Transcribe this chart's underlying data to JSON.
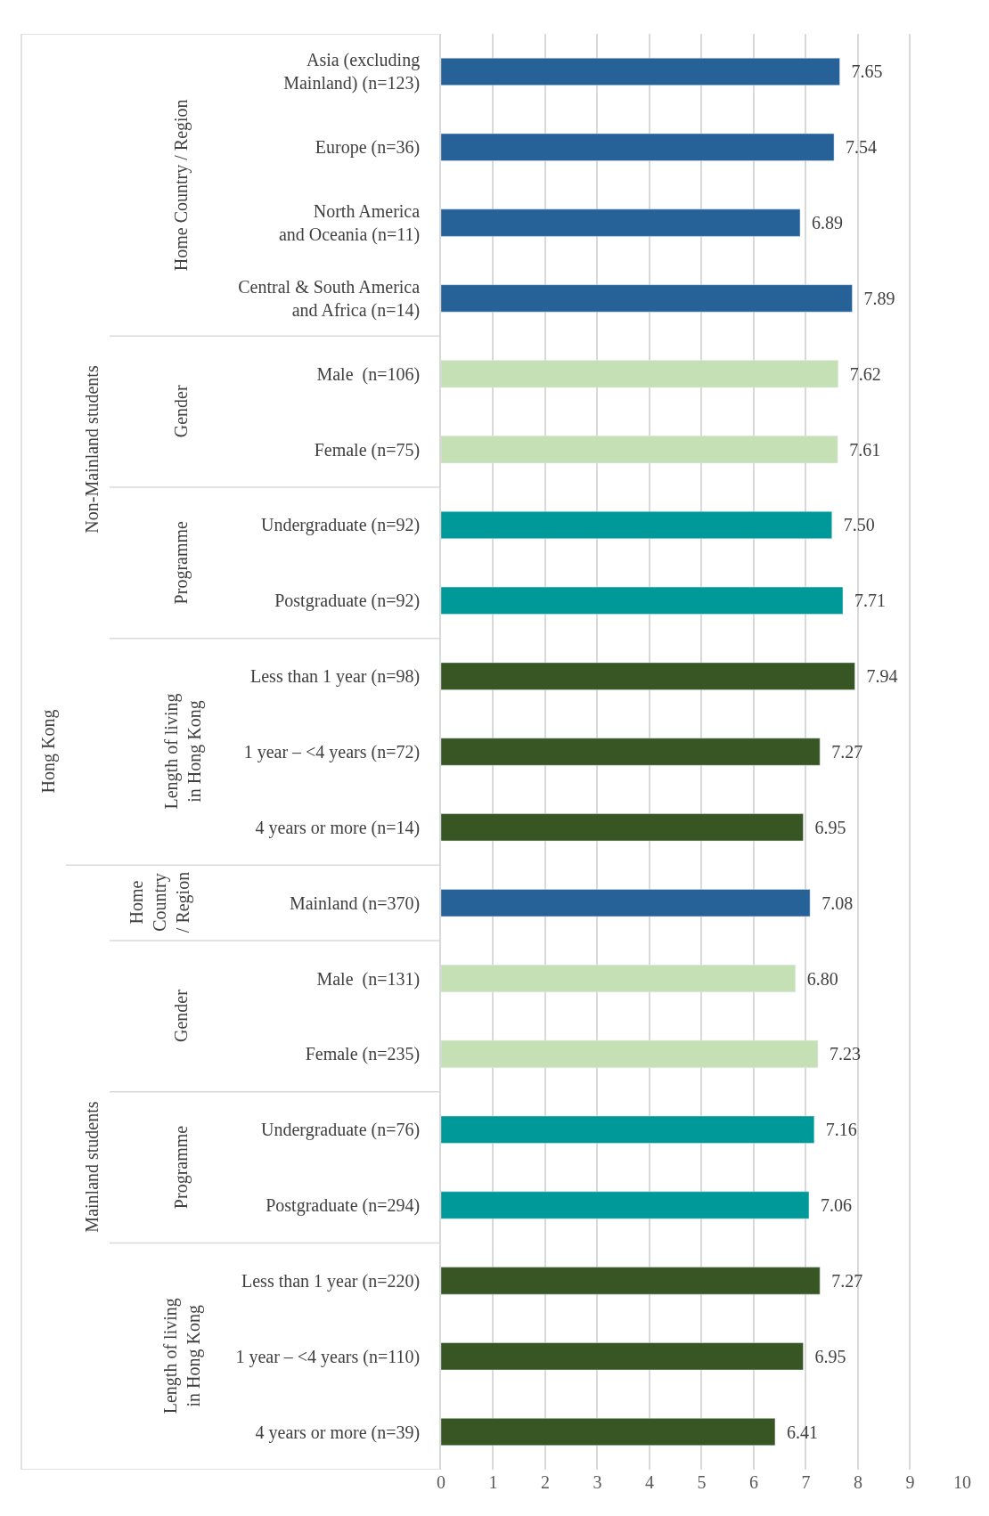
{
  "chart_data": {
    "type": "bar",
    "orientation": "horizontal",
    "categories": [
      "Asia (excluding\nMainland) (n=123)",
      "Europe (n=36)",
      "North America\nand Oceania (n=11)",
      "Central & South America\nand Africa (n=14)",
      "Male  (n=106)",
      "Female (n=75)",
      "Undergraduate (n=92)",
      "Postgraduate (n=92)",
      "Less than 1 year (n=98)",
      "1 year – <4 years (n=72)",
      "4 years or more (n=14)",
      "Mainland (n=370)",
      "Male  (n=131)",
      "Female (n=235)",
      "Undergraduate (n=76)",
      "Postgraduate (n=294)",
      "Less than 1 year (n=220)",
      "1 year – <4 years (n=110)",
      "4 years or more (n=39)"
    ],
    "values": [
      7.65,
      7.54,
      6.89,
      7.89,
      7.62,
      7.61,
      7.5,
      7.71,
      7.94,
      7.27,
      6.95,
      7.08,
      6.8,
      7.23,
      7.16,
      7.06,
      7.27,
      6.95,
      6.41
    ],
    "value_labels": [
      "7.65",
      "7.54",
      "6.89",
      "7.89",
      "7.62",
      "7.61",
      "7.50",
      "7.71",
      "7.94",
      "7.27",
      "6.95",
      "7.08",
      "6.80",
      "7.23",
      "7.16",
      "7.06",
      "7.27",
      "6.95",
      "6.41"
    ],
    "colors": [
      "#266198",
      "#266198",
      "#266198",
      "#266198",
      "#c5e0b4",
      "#c5e0b4",
      "#009999",
      "#009999",
      "#375623",
      "#375623",
      "#375623",
      "#266198",
      "#c5e0b4",
      "#c5e0b4",
      "#009999",
      "#009999",
      "#375623",
      "#375623",
      "#375623"
    ],
    "xlim": [
      0,
      10
    ],
    "xticks": [
      0,
      1,
      2,
      3,
      4,
      5,
      6,
      7,
      8,
      9,
      10
    ],
    "grid": "x",
    "annotations": [
      "Hong Kong",
      "Non-Mainland students",
      "Home Country / Region",
      "Gender",
      "Programme",
      "Length of living\nin Hong Kong",
      "Mainland students",
      "Home\nCountry\n/ Region",
      "Gender",
      "Programme",
      "Length of living\nin Hong Kong"
    ]
  }
}
